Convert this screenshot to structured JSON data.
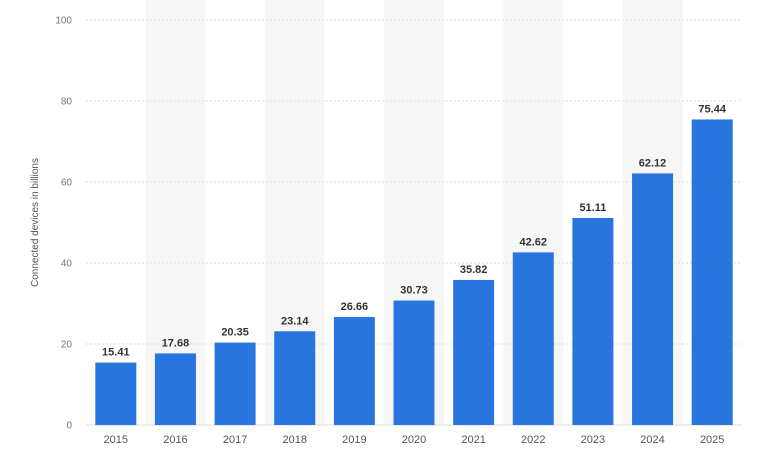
{
  "chart_data": {
    "type": "bar",
    "title": "",
    "xlabel": "",
    "ylabel": "Connected devices in billions",
    "categories": [
      "2015",
      "2016",
      "2017",
      "2018",
      "2019",
      "2020",
      "2021",
      "2022",
      "2023",
      "2024",
      "2025"
    ],
    "values": [
      15.41,
      17.68,
      20.35,
      23.14,
      26.66,
      30.73,
      35.82,
      42.62,
      51.11,
      62.12,
      75.44
    ],
    "data_labels": [
      "15.41",
      "17.68",
      "20.35",
      "23.14",
      "26.66",
      "30.73",
      "35.82",
      "42.62",
      "51.11",
      "62.12",
      "75.44"
    ],
    "ylim": [
      0,
      100
    ],
    "yticks": [
      0,
      20,
      40,
      60,
      80,
      100
    ],
    "ytick_labels": [
      "0",
      "20",
      "40",
      "60",
      "80",
      "100"
    ],
    "grid": true,
    "legend": "none",
    "colors": {
      "bar": "#2876dd",
      "band": "#f6f6f6",
      "grid": "#dddddd"
    }
  }
}
